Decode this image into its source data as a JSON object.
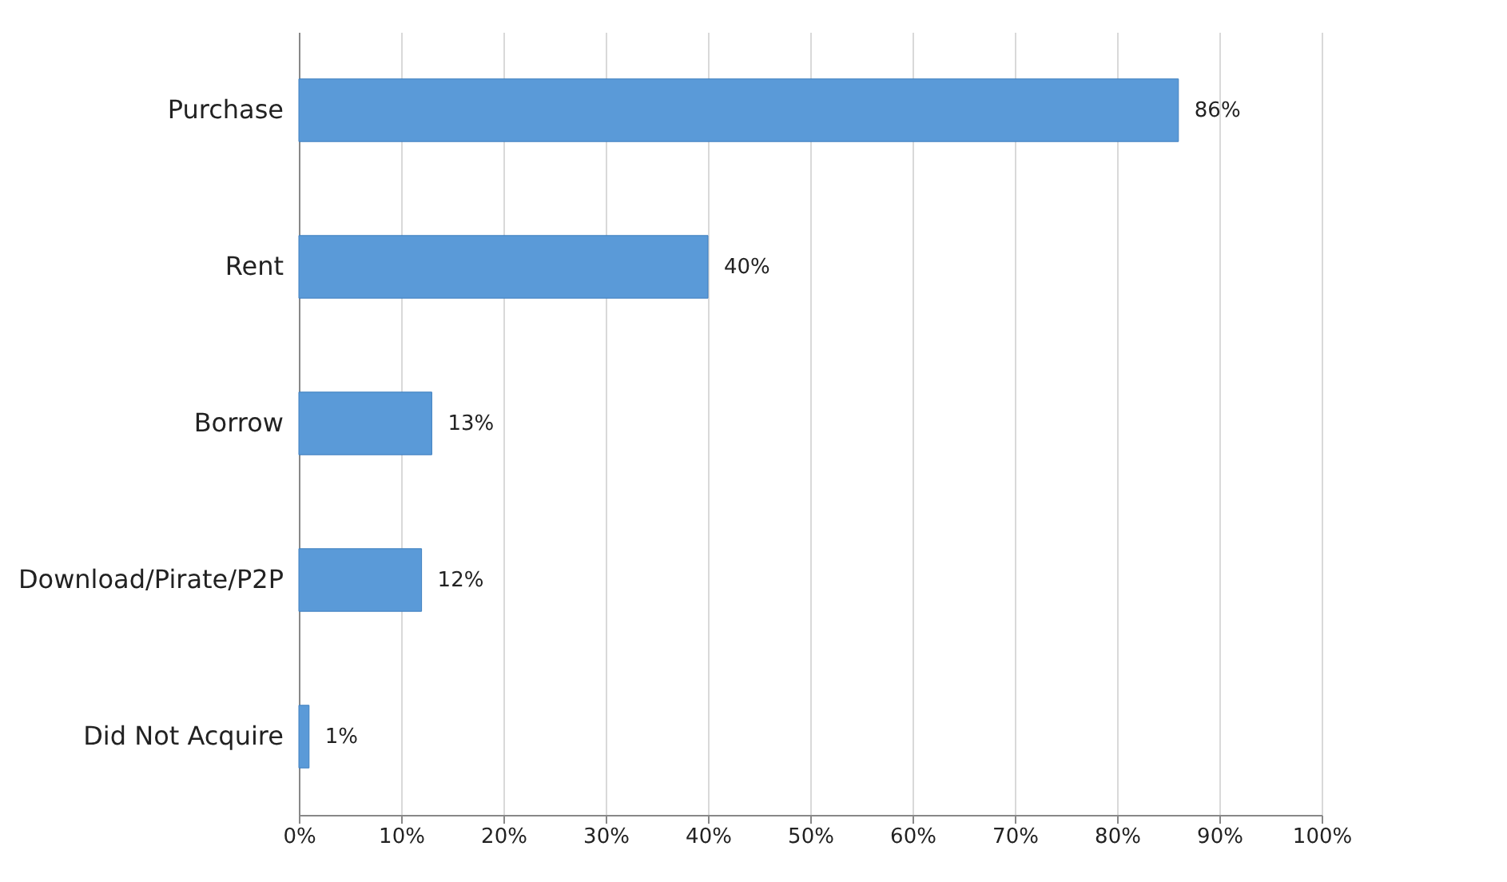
{
  "chart_data": {
    "type": "bar",
    "orientation": "horizontal",
    "categories": [
      "Purchase",
      "Rent",
      "Borrow",
      "Download/Pirate/P2P",
      "Did Not Acquire"
    ],
    "values": [
      86,
      40,
      13,
      12,
      1
    ],
    "value_labels": [
      "86%",
      "40%",
      "13%",
      "12%",
      "1%"
    ],
    "color": "#5a9ad8",
    "xlim": [
      0,
      100
    ],
    "xticks": [
      {
        "value": 0,
        "label": "0%"
      },
      {
        "value": 10,
        "label": "10%"
      },
      {
        "value": 20,
        "label": "20%"
      },
      {
        "value": 30,
        "label": "30%"
      },
      {
        "value": 40,
        "label": "40%"
      },
      {
        "value": 50,
        "label": "50%"
      },
      {
        "value": 60,
        "label": "60%"
      },
      {
        "value": 70,
        "label": "70%"
      },
      {
        "value": 80,
        "label": "80%"
      },
      {
        "value": 90,
        "label": "90%"
      },
      {
        "value": 100,
        "label": "100%"
      }
    ],
    "grid": "x"
  }
}
